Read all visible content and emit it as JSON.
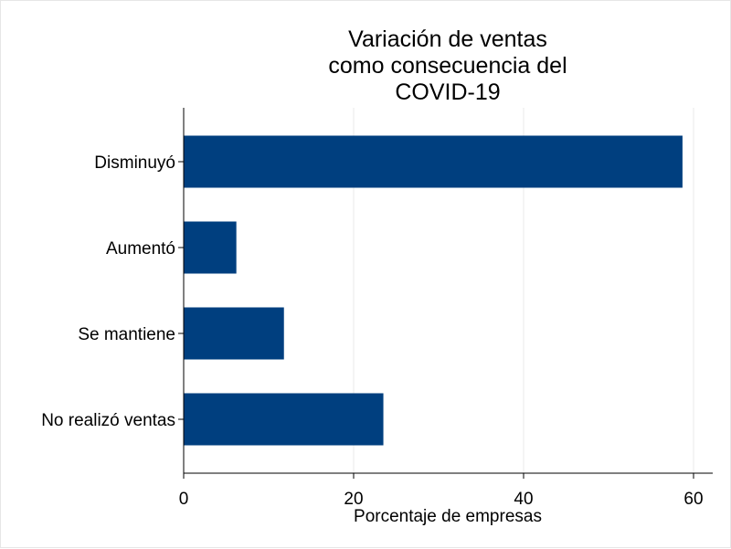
{
  "chart_data": {
    "type": "bar",
    "orientation": "horizontal",
    "title": [
      "Variación de ventas",
      "como consecuencia del",
      "COVID-19"
    ],
    "xlabel": "Porcentaje de empresas",
    "ylabel": "",
    "categories": [
      "Disminuyó",
      "Aumentó",
      "Se mantiene",
      "No realizó ventas"
    ],
    "values": [
      58.7,
      6.2,
      11.8,
      23.5
    ],
    "xlim": [
      0,
      60
    ],
    "xticks": [
      0,
      20,
      40,
      60
    ],
    "grid": true,
    "bar_color": "#003f7f",
    "grid_color": "#e9e9e9"
  }
}
